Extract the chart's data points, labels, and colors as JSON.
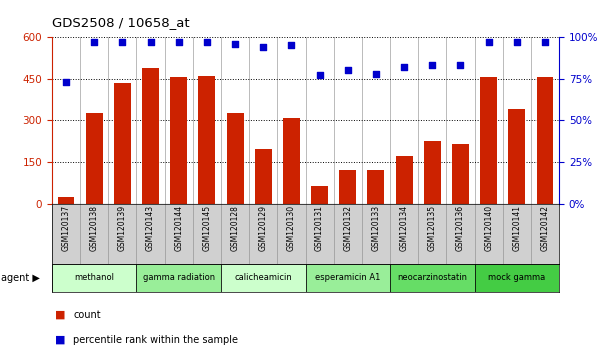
{
  "title": "GDS2508 / 10658_at",
  "samples": [
    "GSM120137",
    "GSM120138",
    "GSM120139",
    "GSM120143",
    "GSM120144",
    "GSM120145",
    "GSM120128",
    "GSM120129",
    "GSM120130",
    "GSM120131",
    "GSM120132",
    "GSM120133",
    "GSM120134",
    "GSM120135",
    "GSM120136",
    "GSM120140",
    "GSM120141",
    "GSM120142"
  ],
  "counts": [
    25,
    325,
    435,
    490,
    455,
    460,
    325,
    195,
    310,
    65,
    120,
    120,
    170,
    225,
    215,
    455,
    340,
    455
  ],
  "percentiles": [
    73,
    97,
    97,
    97,
    97,
    97,
    96,
    94,
    95,
    77,
    80,
    78,
    82,
    83,
    83,
    97,
    97,
    97
  ],
  "bar_color": "#cc2200",
  "dot_color": "#0000cc",
  "left_ylim": [
    0,
    600
  ],
  "right_ylim": [
    0,
    100
  ],
  "left_yticks": [
    0,
    150,
    300,
    450,
    600
  ],
  "right_yticks": [
    0,
    25,
    50,
    75,
    100
  ],
  "right_yticklabels": [
    "0%",
    "25%",
    "50%",
    "75%",
    "100%"
  ],
  "groups": [
    {
      "label": "methanol",
      "start": 0,
      "end": 3,
      "color": "#ccffcc"
    },
    {
      "label": "gamma radiation",
      "start": 3,
      "end": 6,
      "color": "#99ee99"
    },
    {
      "label": "calicheamicin",
      "start": 6,
      "end": 9,
      "color": "#ccffcc"
    },
    {
      "label": "esperamicin A1",
      "start": 9,
      "end": 12,
      "color": "#99ee99"
    },
    {
      "label": "neocarzinostatin",
      "start": 12,
      "end": 15,
      "color": "#66dd66"
    },
    {
      "label": "mock gamma",
      "start": 15,
      "end": 18,
      "color": "#44cc44"
    }
  ],
  "agent_label": "agent",
  "legend_count_label": "count",
  "legend_percentile_label": "percentile rank within the sample",
  "left_axis_color": "#cc2200",
  "right_axis_color": "#0000cc",
  "label_area_color": "#d0d0d0"
}
